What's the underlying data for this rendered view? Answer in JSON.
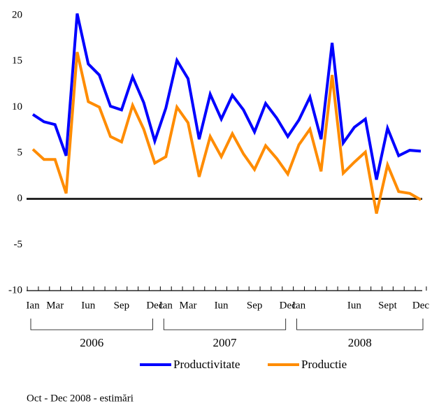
{
  "chart_data": {
    "type": "line",
    "categories": [
      "Ian",
      null,
      "Mar",
      null,
      null,
      "Iun",
      null,
      null,
      "Sep",
      null,
      null,
      "Dec",
      "Ian",
      null,
      "Mar",
      null,
      null,
      "Iun",
      null,
      null,
      "Sep",
      null,
      null,
      "Dec",
      "Ian",
      null,
      null,
      null,
      null,
      "Iun",
      null,
      null,
      "Sept",
      null,
      null,
      "Dec"
    ],
    "groups": [
      "2006",
      "2007",
      "2008"
    ],
    "series": [
      {
        "name": "Productivitate",
        "color": "#0000ff",
        "values": [
          9.2,
          8.4,
          8.1,
          4.7,
          20.2,
          14.7,
          13.5,
          10.1,
          9.7,
          13.3,
          10.5,
          6.3,
          9.9,
          15.1,
          13.1,
          6.5,
          11.4,
          8.7,
          11.3,
          9.7,
          7.3,
          10.4,
          8.8,
          6.8,
          8.6,
          11.1,
          6.5,
          17.0,
          6.1,
          7.8,
          8.7,
          2.1,
          7.7,
          4.7,
          5.3,
          5.2
        ]
      },
      {
        "name": "Productie",
        "color": "#ff8c00",
        "values": [
          5.4,
          4.3,
          4.3,
          0.6,
          16.0,
          10.6,
          10.0,
          6.8,
          6.2,
          10.2,
          7.6,
          3.9,
          4.6,
          10.0,
          8.3,
          2.4,
          6.8,
          4.6,
          7.1,
          4.9,
          3.2,
          5.8,
          4.4,
          2.7,
          5.9,
          7.6,
          3.0,
          13.5,
          2.8,
          4.0,
          5.1,
          -1.6,
          3.7,
          0.8,
          0.6,
          -0.1
        ]
      }
    ],
    "ylim": [
      -10,
      20
    ],
    "yticks": [
      -10,
      -5,
      0,
      5,
      10,
      15,
      20
    ],
    "grid": false,
    "note": "Oct -  Dec 2008 - estimări"
  }
}
